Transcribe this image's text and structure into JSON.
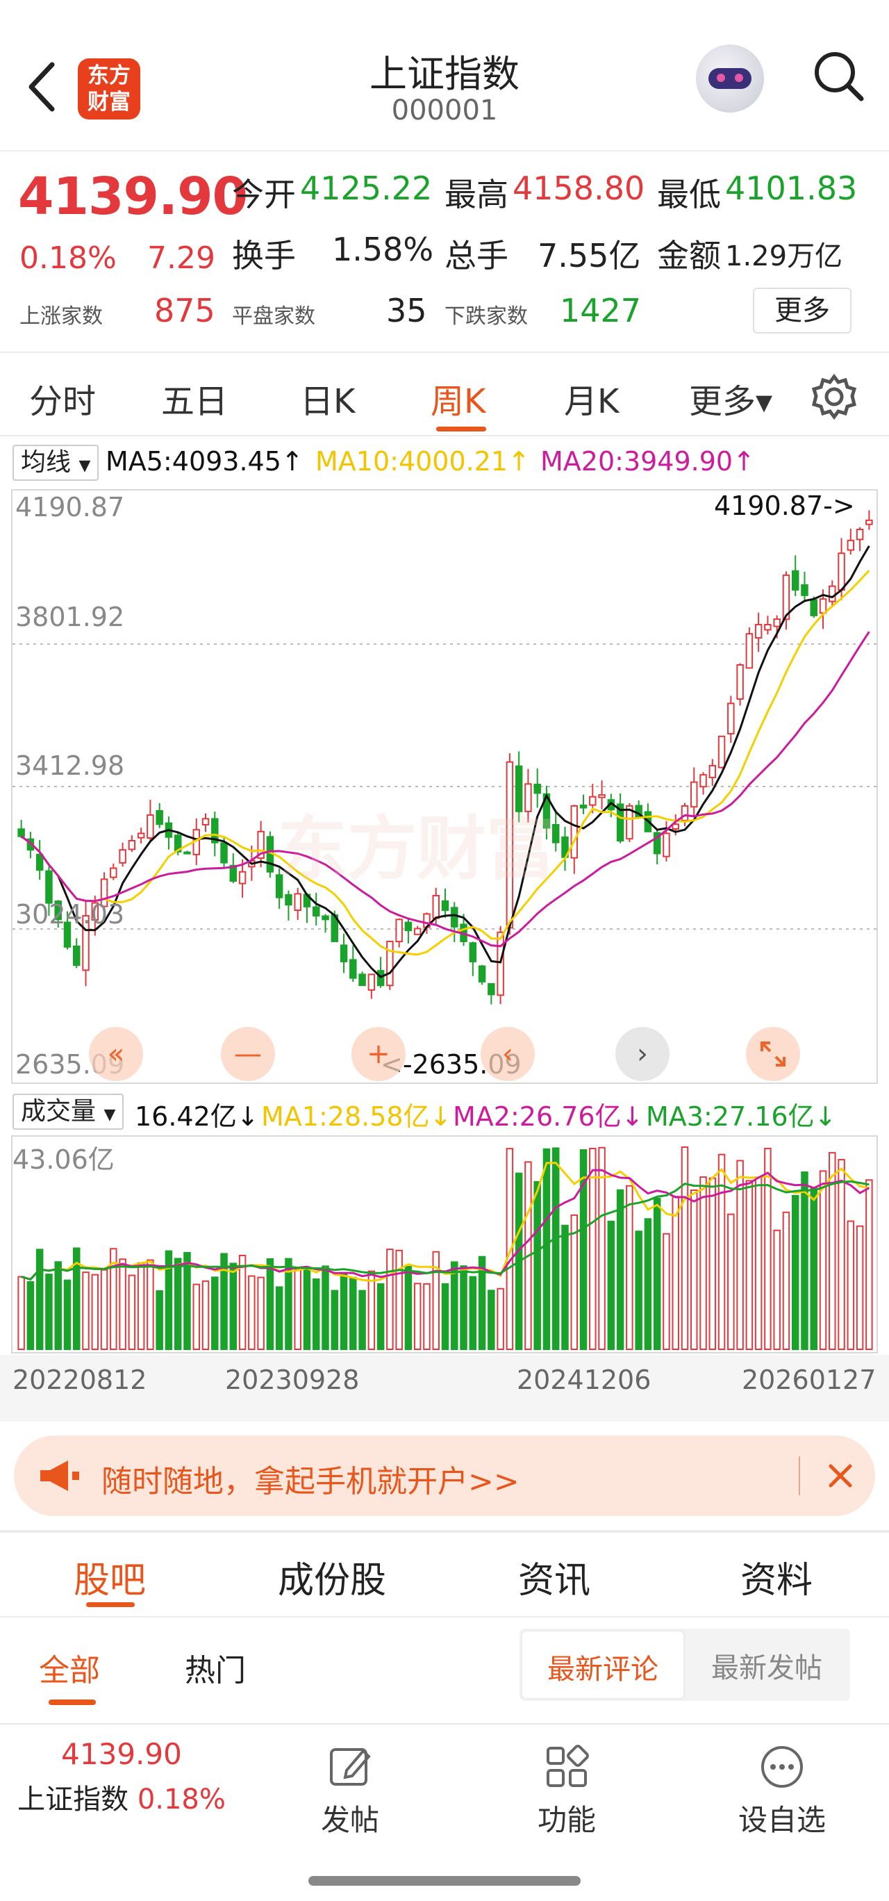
{
  "header": {
    "title": "上证指数",
    "code": "000001",
    "logo_line1": "东方",
    "logo_line2": "财富"
  },
  "quote": {
    "price": "4139.90",
    "change_pct": "0.18%",
    "change": "7.29",
    "open_label": "今开",
    "open": "4125.22",
    "high_label": "最高",
    "high": "4158.80",
    "low_label": "最低",
    "low": "4101.83",
    "turnover_label": "换手",
    "turnover": "1.58%",
    "volume_label": "总手",
    "volume": "7.55亿",
    "amount_label": "金额",
    "amount": "1.29万亿",
    "up_label": "上涨家数",
    "up": "875",
    "flat_label": "平盘家数",
    "flat": "35",
    "down_label": "下跌家数",
    "down": "1427",
    "more_label": "更多"
  },
  "period_tabs": [
    "分时",
    "五日",
    "日K",
    "周K",
    "月K",
    "更多▾"
  ],
  "active_period": "周K",
  "ma_legend": {
    "selector": "均线",
    "ma5": "MA5:4093.45↑",
    "ma10": "MA10:4000.21↑",
    "ma20": "MA20:3949.90↑"
  },
  "price_chart": {
    "y_labels": [
      "4190.87",
      "3801.92",
      "3412.98",
      "3024.03",
      "2635.09"
    ],
    "max_marker": "4190.87->",
    "min_marker": "<-2635.09"
  },
  "volume_legend": {
    "selector": "成交量",
    "value": "16.42亿↓",
    "ma1": "MA1:28.58亿↓",
    "ma2": "MA2:26.76亿↓",
    "ma3": "MA3:27.16亿↓",
    "max_label": "43.06亿"
  },
  "x_dates": [
    "20220812",
    "20230928",
    "20241206",
    "20260127"
  ],
  "promo": {
    "text": "随时随地，拿起手机就开户>>"
  },
  "content_tabs": [
    "股吧",
    "成份股",
    "资讯",
    "资料"
  ],
  "sub_tabs": [
    "全部",
    "热门"
  ],
  "sort_tabs": [
    "最新评论",
    "最新发帖"
  ],
  "bottom_bar": {
    "price": "4139.90",
    "name": "上证指数",
    "pct": "0.18%",
    "post": "发帖",
    "func": "功能",
    "watch": "设自选"
  },
  "colors": {
    "up": "#e4393c",
    "down": "#1aa32b",
    "accent": "#e8561c",
    "ma5": "#111111",
    "ma10": "#f4d000",
    "ma20": "#cc1b9c"
  },
  "chart_data": {
    "type": "candlestick",
    "title": "上证指数 周K",
    "ylim": [
      2635.09,
      4190.87
    ],
    "x_labels": [
      "20220812",
      "20230928",
      "20241206",
      "20260127"
    ],
    "close_series": [
      3277,
      3240,
      3185,
      3095,
      3050,
      2975,
      2925,
      3060,
      3095,
      3160,
      3190,
      3240,
      3265,
      3285,
      3335,
      3310,
      3275,
      3235,
      3230,
      3295,
      3325,
      3260,
      3205,
      3155,
      3180,
      3210,
      3290,
      3180,
      3110,
      3090,
      3120,
      3085,
      3060,
      3050,
      2990,
      2935,
      2890,
      2870,
      2900,
      2870,
      2990,
      3050,
      3020,
      3025,
      3065,
      3115,
      3075,
      3030,
      2990,
      2935,
      2880,
      2845,
      3015,
      3480,
      3345,
      3420,
      3395,
      3300,
      3260,
      3220,
      3360,
      3355,
      3385,
      3390,
      3350,
      3265,
      3360,
      3330,
      3290,
      3230,
      3285,
      3310,
      3360,
      3425,
      3445,
      3470,
      3550,
      3640,
      3745,
      3830,
      3855,
      3855,
      3870,
      3990,
      3950,
      3935,
      3880,
      3925,
      3960,
      4050,
      4085,
      4115,
      4140
    ],
    "volume_max_label": "43.06亿"
  }
}
